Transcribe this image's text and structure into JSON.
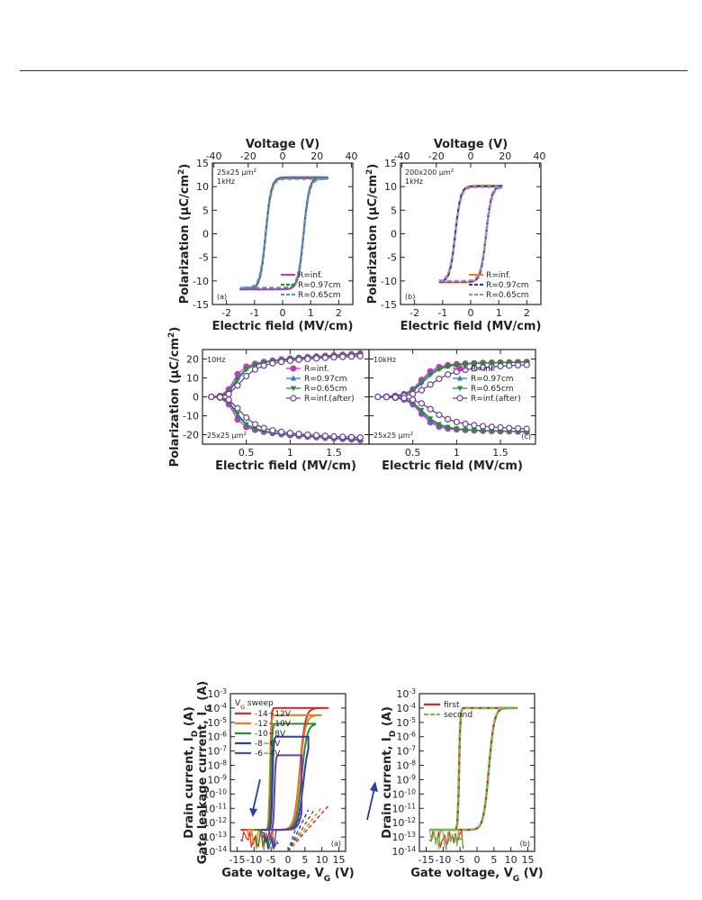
{
  "chart_data": [
    {
      "id": "a",
      "type": "line",
      "panel_label": "(a)",
      "annotation": [
        "25x25 µm²",
        "1kHz"
      ],
      "xlabel": "Electric field (MV/cm)",
      "x2label": "Voltage (V)",
      "ylabel": "Polarization (µC/cm²)",
      "xlim": [
        -2.5,
        2.5
      ],
      "ylim": [
        -15,
        15
      ],
      "xticks": [
        "-2",
        "-1",
        "0",
        "1",
        "2"
      ],
      "x2ticks": [
        "-40",
        "-20",
        "0",
        "20",
        "40"
      ],
      "yticks": [
        "-15",
        "-10",
        "-5",
        "0",
        "5",
        "10",
        "15"
      ],
      "loop": {
        "xmin": -1.5,
        "xmax": 1.6,
        "ymax": 12,
        "ymin": -11.8,
        "ec_pos": 0.75,
        "ec_neg": -0.6
      },
      "series": [
        {
          "name": "R=inf.",
          "color": "#c23bb0",
          "style": "solid"
        },
        {
          "name": "R=0.97cm",
          "color": "#2e8b2e",
          "style": "dash"
        },
        {
          "name": "R=0.65cm",
          "color": "#5a8fe0",
          "style": "dash"
        }
      ]
    },
    {
      "id": "b",
      "type": "line",
      "panel_label": "(b)",
      "annotation": [
        "200x200 µm²",
        "1kHz"
      ],
      "xlabel": "Electric field (MV/cm)",
      "x2label": "Voltage (V)",
      "ylabel": "Polarization (µC/cm²)",
      "xlim": [
        -2.5,
        2.5
      ],
      "ylim": [
        -15,
        15
      ],
      "xticks": [
        "-2",
        "-1",
        "0",
        "1",
        "2"
      ],
      "x2ticks": [
        "-40",
        "-20",
        "0",
        "20",
        "40"
      ],
      "yticks": [
        "-15",
        "-10",
        "-5",
        "0",
        "5",
        "10",
        "15"
      ],
      "loop": {
        "xmin": -1.1,
        "xmax": 1.1,
        "ymax": 10.2,
        "ymin": -10.3,
        "ec_pos": 0.55,
        "ec_neg": -0.55
      },
      "series": [
        {
          "name": "R=inf.",
          "color": "#f07c1f",
          "style": "solid"
        },
        {
          "name": "R=0.97cm",
          "color": "#2a3f9e",
          "style": "dash"
        },
        {
          "name": "R=0.65cm",
          "color": "#9a88e0",
          "style": "dash"
        }
      ]
    },
    {
      "id": "c_left",
      "type": "line",
      "panel_label": "",
      "annotation": [
        "10Hz",
        "25x25 µm²"
      ],
      "xlabel": "Electric field (MV/cm)",
      "ylabel": "Polarization (µC/cm²)",
      "xlim": [
        0,
        1.9
      ],
      "ylim": [
        -25,
        25
      ],
      "xticks": [
        "0.5",
        "1",
        "1.5"
      ],
      "yticks": [
        "-20",
        "-10",
        "0",
        "10",
        "20"
      ],
      "x": [
        0.1,
        0.2,
        0.3,
        0.4,
        0.5,
        0.6,
        0.7,
        0.8,
        0.9,
        1.0,
        1.1,
        1.2,
        1.3,
        1.4,
        1.5,
        1.6,
        1.7,
        1.8
      ],
      "series": [
        {
          "name": "R=inf.",
          "color": "#c23bb0",
          "marker": "circle",
          "upper": [
            0,
            0.5,
            4,
            12,
            16,
            17.5,
            18.5,
            19.2,
            19.8,
            20.3,
            20.7,
            21.1,
            21.4,
            21.7,
            22,
            22.3,
            22.6,
            23
          ]
        },
        {
          "name": "R=0.97cm",
          "color": "#3a74c9",
          "marker": "triangle-up",
          "upper": [
            0,
            0.4,
            3,
            10,
            15,
            17,
            18.2,
            19,
            19.6,
            20.1,
            20.5,
            20.9,
            21.2,
            21.5,
            21.8,
            22.1,
            22.3,
            22.6
          ]
        },
        {
          "name": "R=0.65cm",
          "color": "#2e8b2e",
          "marker": "triangle-down",
          "upper": [
            0,
            0.3,
            2.5,
            9,
            14.5,
            16.8,
            18,
            18.8,
            19.4,
            19.9,
            20.3,
            20.7,
            21,
            21.3,
            21.6,
            21.9,
            22.1,
            22.4
          ]
        },
        {
          "name": "R=inf.(after)",
          "color": "#6b3fa0",
          "marker": "open-circle",
          "upper": [
            0,
            0.2,
            1.5,
            6,
            11,
            14.5,
            16.5,
            17.7,
            18.5,
            19.1,
            19.6,
            20,
            20.3,
            20.6,
            20.9,
            21.1,
            21.3,
            21.5
          ]
        }
      ]
    },
    {
      "id": "c_right",
      "type": "line",
      "panel_label": "(c)",
      "annotation": [
        "10kHz",
        "25x25 µm²"
      ],
      "xlabel": "Electric field (MV/cm)",
      "xlim": [
        0,
        1.9
      ],
      "ylim": [
        -25,
        25
      ],
      "xticks": [
        "0.5",
        "1",
        "1.5"
      ],
      "x": [
        0.1,
        0.2,
        0.3,
        0.4,
        0.5,
        0.6,
        0.7,
        0.8,
        0.9,
        1.0,
        1.1,
        1.2,
        1.3,
        1.4,
        1.5,
        1.6,
        1.7,
        1.8
      ],
      "series": [
        {
          "name": "R=inf.",
          "color": "#c23bb0",
          "marker": "circle",
          "upper": [
            0,
            0.2,
            0.6,
            1.5,
            4,
            9,
            13.5,
            15.8,
            16.8,
            17.3,
            17.6,
            17.8,
            18,
            18.1,
            18.2,
            18.3,
            18.4,
            18.5
          ]
        },
        {
          "name": "R=0.97cm",
          "color": "#3a74c9",
          "marker": "triangle-up",
          "upper": [
            0,
            0.2,
            0.5,
            1.2,
            3.5,
            8,
            12.5,
            15,
            16.2,
            16.9,
            17.3,
            17.6,
            17.8,
            18,
            18.1,
            18.2,
            18.3,
            18.4
          ]
        },
        {
          "name": "R=0.65cm",
          "color": "#2e8b2e",
          "marker": "triangle-down",
          "upper": [
            0,
            0.2,
            0.5,
            1,
            3,
            7,
            11.5,
            14.5,
            16,
            16.8,
            17.3,
            17.6,
            17.8,
            18,
            18.1,
            18.2,
            18.3,
            18.4
          ]
        },
        {
          "name": "R=inf.(after)",
          "color": "#6b3fa0",
          "marker": "open-circle",
          "upper": [
            0,
            0.1,
            0.3,
            0.6,
            1.5,
            3.5,
            6.5,
            9.5,
            11.8,
            13.3,
            14.3,
            15,
            15.5,
            15.9,
            16.2,
            16.5,
            16.7,
            16.9
          ]
        }
      ]
    },
    {
      "id": "d",
      "type": "line",
      "panel_label": "(a)",
      "legend_title": "VG sweep",
      "xlabel": "Gate voltage, VG (V)",
      "ylabel_1": "Drain current, ID (A)",
      "ylabel_2": "Gate leakage current, IG (A)",
      "xlim": [
        -17,
        17
      ],
      "ylim_exp": [
        -14,
        -3
      ],
      "yscale": "log",
      "xticks": [
        "-15",
        "-10",
        "-5",
        "0",
        "5",
        "10",
        "15"
      ],
      "yticks_exp": [
        "-14",
        "-13",
        "-12",
        "-11",
        "-10",
        "-9",
        "-8",
        "-7",
        "-6",
        "-5",
        "-4",
        "-3"
      ],
      "series": [
        {
          "name": "-14~12V",
          "color": "#e0262b",
          "vmin": -14,
          "vmax": 12,
          "ion_exp": -4.0,
          "turn_on_fwd": 1.5,
          "turn_on_rev": -4.5
        },
        {
          "name": "-12~10V",
          "color": "#f07c1f",
          "vmin": -12,
          "vmax": 10,
          "ion_exp": -4.5,
          "turn_on_fwd": 1.5,
          "turn_on_rev": -4.5
        },
        {
          "name": "-10~8V",
          "color": "#2e8b2e",
          "vmin": -10,
          "vmax": 8,
          "ion_exp": -5.1,
          "turn_on_fwd": 2,
          "turn_on_rev": -4.2
        },
        {
          "name": "-8~6V",
          "color": "#2a3f9e",
          "vmin": -8,
          "vmax": 6,
          "ion_exp": -6.0,
          "turn_on_fwd": 2.5,
          "turn_on_rev": -3.8
        },
        {
          "name": "-6~4V",
          "color": "#6b3fa0",
          "vmin": -6,
          "vmax": 4,
          "ion_exp": -7.3,
          "turn_on_fwd": 3,
          "turn_on_rev": -3.2
        }
      ]
    },
    {
      "id": "e",
      "type": "line",
      "panel_label": "(b)",
      "xlabel": "Gate voltage, VG (V)",
      "ylabel_1": "Drain current, ID (A)",
      "xlim": [
        -17,
        17
      ],
      "ylim_exp": [
        -14,
        -3
      ],
      "yscale": "log",
      "xticks": [
        "-15",
        "-10",
        "-5",
        "0",
        "5",
        "10",
        "15"
      ],
      "yticks_exp": [
        "-14",
        "-13",
        "-12",
        "-11",
        "-10",
        "-9",
        "-8",
        "-7",
        "-6",
        "-5",
        "-4",
        "-3"
      ],
      "series": [
        {
          "name": "first",
          "color": "#e0262b",
          "vmin": -14,
          "vmax": 12,
          "ion_exp": -4.0,
          "turn_on_fwd": 1.5,
          "turn_on_rev": -4.5
        },
        {
          "name": "second",
          "color": "#6cc04a",
          "vmin": -14,
          "vmax": 12,
          "ion_exp": -4.0,
          "turn_on_fwd": 1.5,
          "turn_on_rev": -4.5
        }
      ]
    }
  ]
}
